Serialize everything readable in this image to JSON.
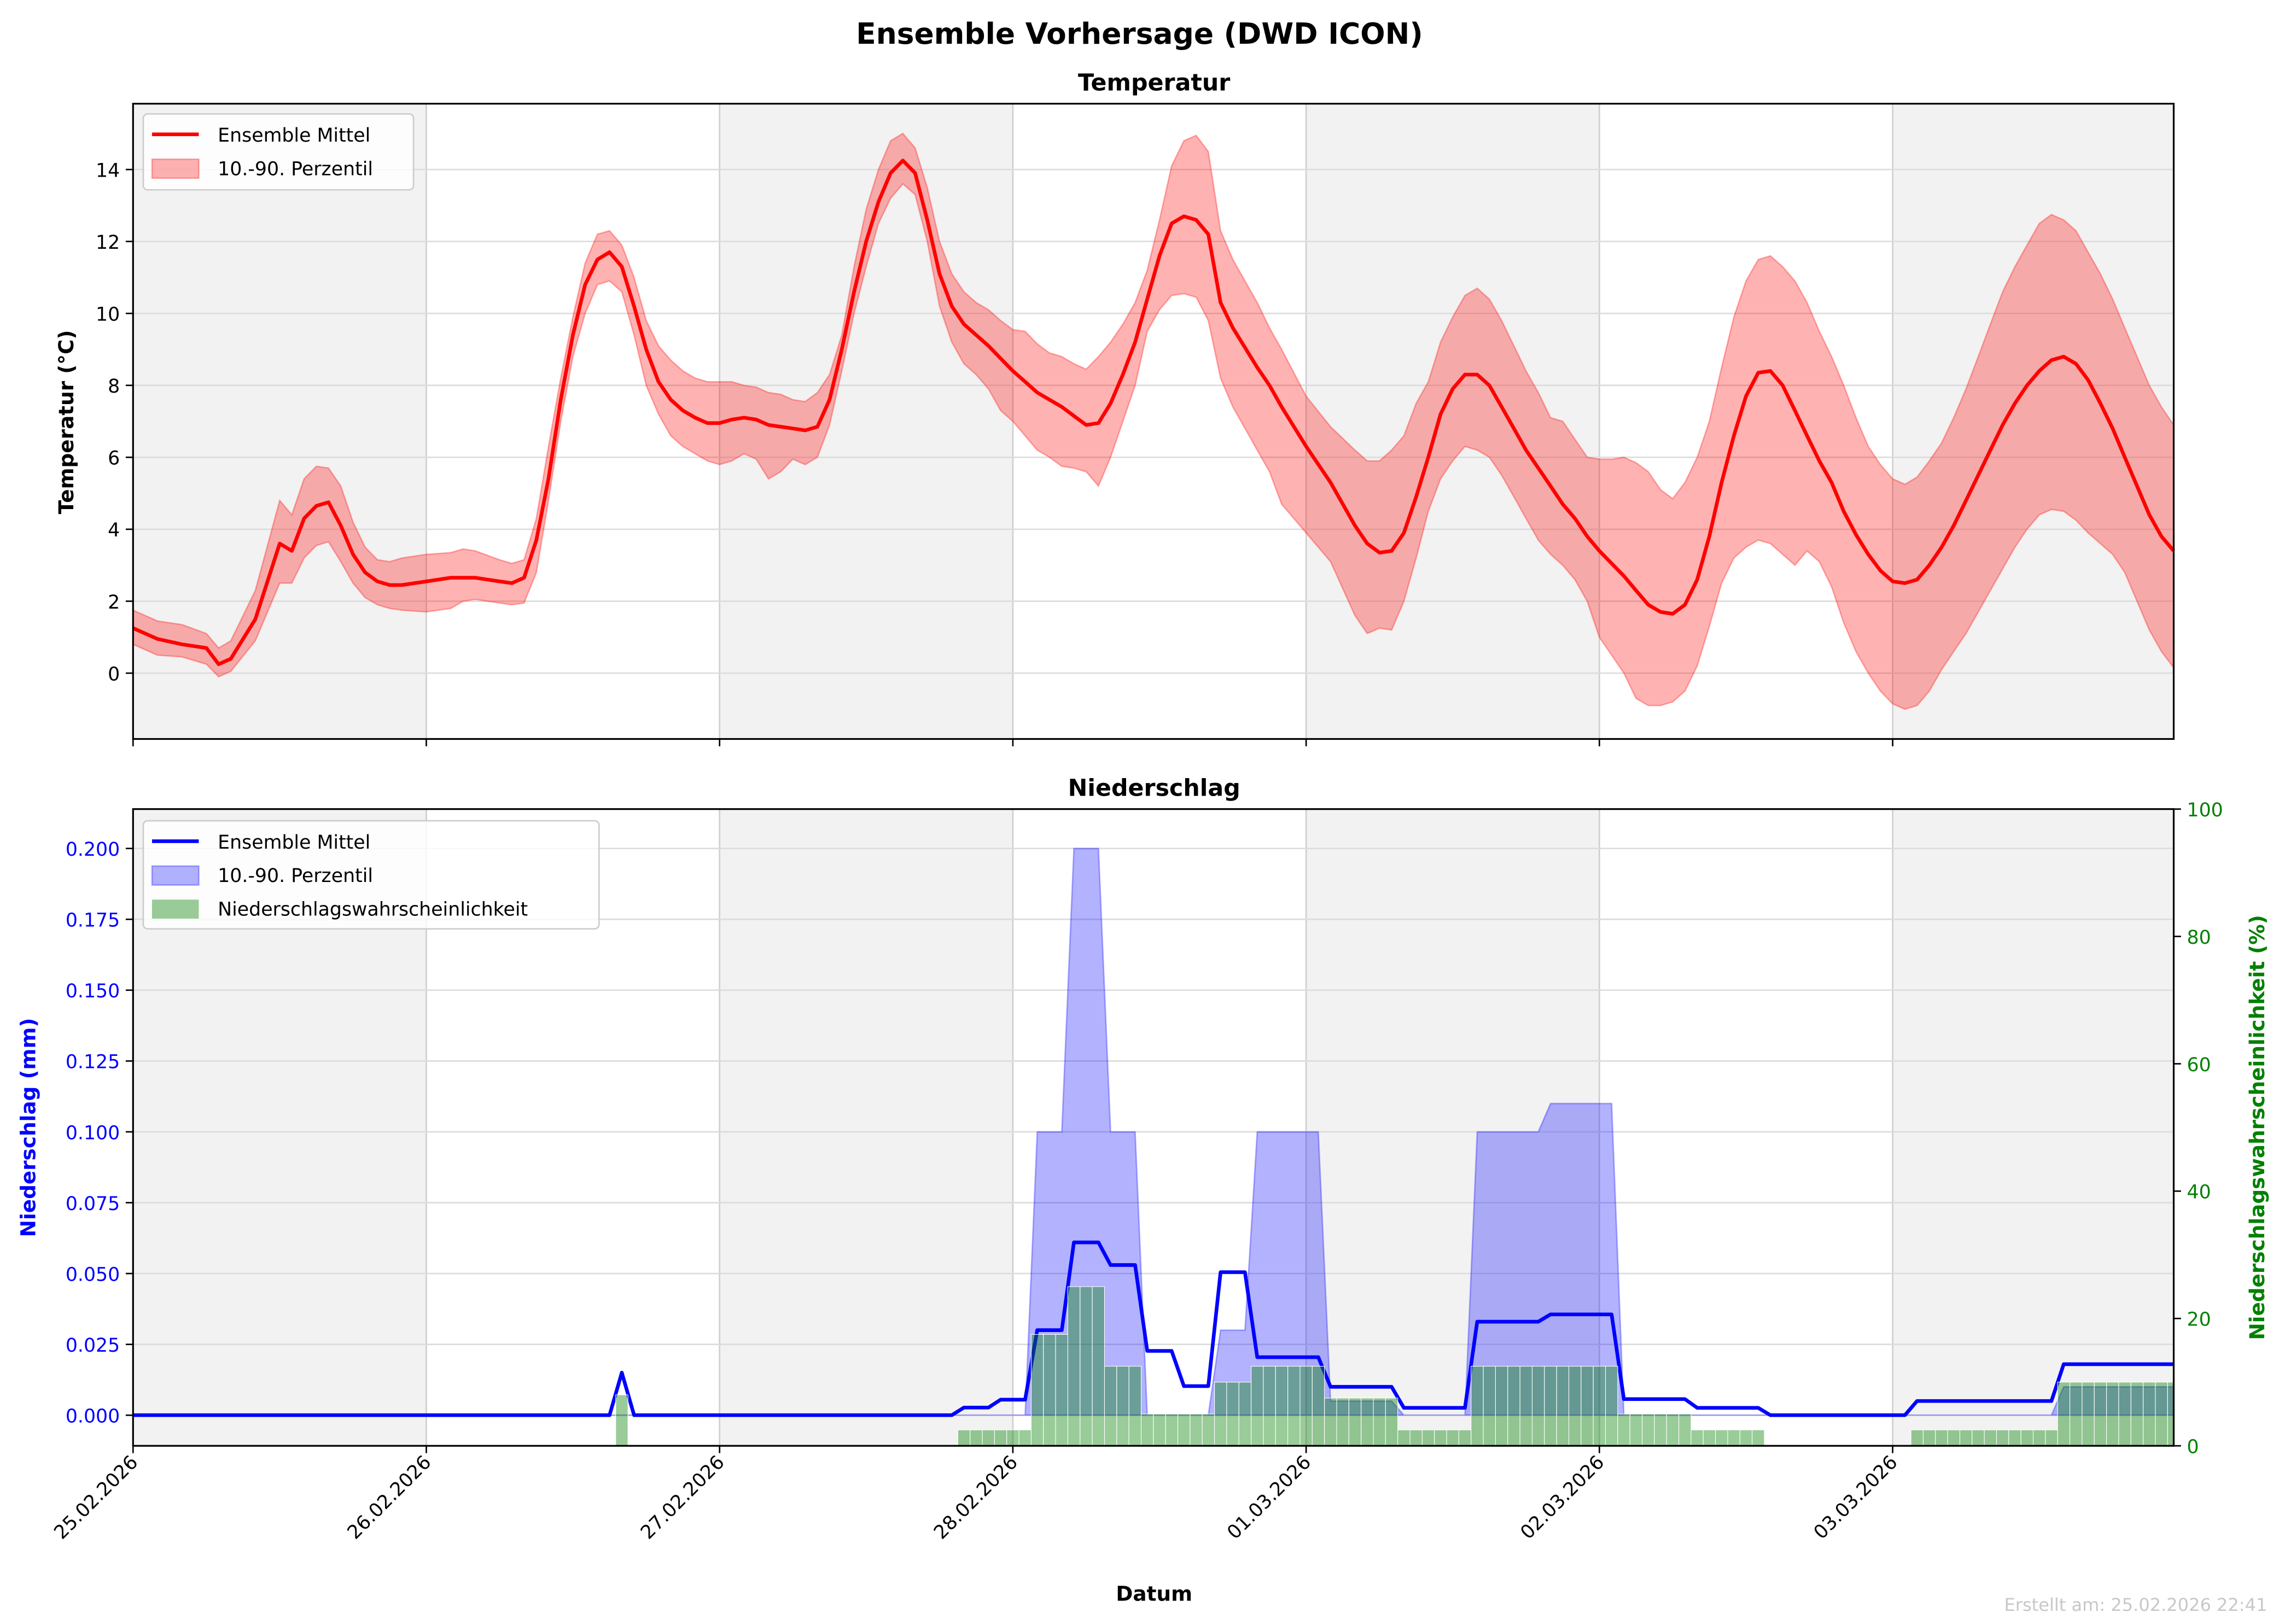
{
  "suptitle": "Ensemble Vorhersage (DWD ICON)",
  "footer": "Erstellt am: 25.02.2026 22:41",
  "colors": {
    "temp": "#ff0000",
    "precip": "#0000ff",
    "prob": "#008000",
    "shade": "#f2f2f2"
  },
  "chart_data": [
    {
      "type": "line",
      "title": "Temperatur",
      "xlabel": "",
      "ylabel": "Temperatur (°C)",
      "x_unit": "hours since 25.02.2026 00:00",
      "xlim": [
        0,
        167
      ],
      "ylim": [
        -1.83,
        15.83
      ],
      "yticks": [
        0,
        2,
        4,
        6,
        8,
        10,
        12,
        14
      ],
      "legend": {
        "placement": "top-left",
        "entries": [
          "Ensemble Mittel",
          "10.-90. Perzentil"
        ]
      },
      "hours": [
        0,
        2,
        4,
        6,
        7,
        8,
        10,
        12,
        13,
        14,
        15,
        16,
        17,
        18,
        19,
        20,
        21,
        22,
        24,
        26,
        27,
        28,
        30,
        31,
        32,
        33,
        34,
        35,
        36,
        37,
        38,
        39,
        40,
        41,
        42,
        43,
        44,
        45,
        46,
        47,
        48,
        49,
        50,
        51,
        52,
        53,
        54,
        55,
        56,
        57,
        58,
        59,
        60,
        61,
        62,
        63,
        64,
        65,
        66,
        67,
        68,
        69,
        70,
        71,
        72,
        73,
        74,
        75,
        76,
        77,
        78,
        79,
        80,
        81,
        82,
        83,
        84,
        85,
        86,
        87,
        88,
        89,
        90,
        92,
        93,
        94,
        96,
        98,
        100,
        101,
        102,
        103,
        104,
        105,
        106,
        107,
        108,
        109,
        110,
        111,
        112,
        113,
        114,
        115,
        116,
        117,
        118,
        119,
        120,
        121,
        122,
        123,
        124,
        125,
        126,
        127,
        128,
        129,
        130,
        131,
        132,
        133,
        134,
        135,
        136,
        137,
        138,
        139,
        140,
        141,
        142,
        143,
        144,
        145,
        146,
        147,
        148,
        149,
        150,
        151,
        152,
        153,
        154,
        155,
        156,
        157,
        158,
        159,
        160,
        161,
        162,
        163,
        164,
        165,
        166,
        167
      ],
      "mean": [
        1.25,
        0.95,
        0.8,
        0.7,
        0.25,
        0.4,
        1.5,
        3.6,
        3.4,
        4.3,
        4.65,
        4.75,
        4.1,
        3.3,
        2.8,
        2.55,
        2.45,
        2.45,
        2.55,
        2.65,
        2.65,
        2.65,
        2.55,
        2.5,
        2.65,
        3.7,
        5.4,
        7.6,
        9.4,
        10.8,
        11.5,
        11.7,
        11.3,
        10.2,
        9.0,
        8.1,
        7.6,
        7.3,
        7.1,
        6.95,
        6.95,
        7.05,
        7.1,
        7.05,
        6.9,
        6.85,
        6.8,
        6.75,
        6.85,
        7.6,
        9.0,
        10.6,
        12.0,
        13.1,
        13.9,
        14.25,
        13.9,
        12.6,
        11.1,
        10.2,
        9.7,
        9.4,
        9.1,
        8.75,
        8.4,
        8.1,
        7.8,
        7.6,
        7.4,
        7.15,
        6.9,
        6.95,
        7.5,
        8.3,
        9.2,
        10.4,
        11.6,
        12.5,
        12.7,
        12.6,
        12.2,
        10.3,
        9.6,
        8.5,
        8.0,
        7.4,
        6.3,
        5.3,
        4.1,
        3.6,
        3.35,
        3.4,
        3.9,
        4.9,
        6.0,
        7.2,
        7.9,
        8.3,
        8.3,
        8.0,
        7.4,
        6.8,
        6.2,
        5.7,
        5.2,
        4.7,
        4.3,
        3.8,
        3.4,
        3.05,
        2.7,
        2.3,
        1.9,
        1.7,
        1.65,
        1.9,
        2.6,
        3.8,
        5.3,
        6.6,
        7.7,
        8.35,
        8.4,
        8.0,
        7.3,
        6.6,
        5.9,
        5.3,
        4.5,
        3.85,
        3.3,
        2.85,
        2.55,
        2.5,
        2.6,
        3.0,
        3.5,
        4.1,
        4.8,
        5.5,
        6.2,
        6.9,
        7.5,
        8.0,
        8.4,
        8.7,
        8.8,
        8.6,
        8.15,
        7.5,
        6.8,
        6.0,
        5.2,
        4.4,
        3.8,
        3.4
      ],
      "p10": [
        0.8,
        0.5,
        0.45,
        0.25,
        -0.1,
        0.05,
        0.9,
        2.5,
        2.5,
        3.2,
        3.55,
        3.65,
        3.1,
        2.5,
        2.1,
        1.9,
        1.8,
        1.75,
        1.7,
        1.8,
        2.0,
        2.05,
        1.95,
        1.9,
        1.95,
        2.8,
        4.8,
        7.0,
        8.8,
        10.0,
        10.8,
        10.9,
        10.6,
        9.4,
        8.0,
        7.2,
        6.6,
        6.3,
        6.1,
        5.9,
        5.8,
        5.9,
        6.1,
        5.95,
        5.4,
        5.6,
        5.95,
        5.8,
        6.0,
        6.9,
        8.4,
        10.0,
        11.3,
        12.5,
        13.2,
        13.6,
        13.3,
        12.0,
        10.2,
        9.2,
        8.6,
        8.3,
        7.9,
        7.3,
        7.0,
        6.6,
        6.2,
        6.0,
        5.75,
        5.7,
        5.6,
        5.2,
        6.0,
        7.0,
        8.0,
        9.5,
        10.1,
        10.5,
        10.55,
        10.45,
        9.8,
        8.2,
        7.4,
        6.2,
        5.6,
        4.7,
        3.9,
        3.1,
        1.6,
        1.1,
        1.25,
        1.2,
        2.0,
        3.2,
        4.5,
        5.4,
        5.9,
        6.3,
        6.2,
        6.0,
        5.5,
        4.9,
        4.3,
        3.7,
        3.3,
        3.0,
        2.6,
        2.0,
        1.0,
        0.5,
        0.0,
        -0.7,
        -0.9,
        -0.9,
        -0.8,
        -0.5,
        0.2,
        1.3,
        2.5,
        3.2,
        3.5,
        3.7,
        3.6,
        3.3,
        3.0,
        3.4,
        3.1,
        2.4,
        1.4,
        0.6,
        0.0,
        -0.5,
        -0.85,
        -1.0,
        -0.9,
        -0.5,
        0.1,
        0.6,
        1.1,
        1.7,
        2.3,
        2.9,
        3.5,
        4.0,
        4.4,
        4.55,
        4.5,
        4.25,
        3.9,
        3.6,
        3.3,
        2.8,
        2.0,
        1.2,
        0.6,
        0.15
      ],
      "p90": [
        1.75,
        1.45,
        1.35,
        1.1,
        0.7,
        0.9,
        2.3,
        4.8,
        4.4,
        5.4,
        5.75,
        5.7,
        5.2,
        4.2,
        3.5,
        3.15,
        3.1,
        3.2,
        3.3,
        3.35,
        3.45,
        3.4,
        3.15,
        3.05,
        3.15,
        4.3,
        6.3,
        8.2,
        9.9,
        11.4,
        12.2,
        12.3,
        11.9,
        11.0,
        9.8,
        9.1,
        8.7,
        8.4,
        8.2,
        8.1,
        8.1,
        8.1,
        8.0,
        7.95,
        7.8,
        7.75,
        7.6,
        7.55,
        7.8,
        8.3,
        9.4,
        11.3,
        12.9,
        14.0,
        14.8,
        15.0,
        14.6,
        13.5,
        12.0,
        11.1,
        10.6,
        10.3,
        10.1,
        9.8,
        9.55,
        9.5,
        9.15,
        8.9,
        8.8,
        8.6,
        8.45,
        8.8,
        9.2,
        9.7,
        10.3,
        11.2,
        12.6,
        14.1,
        14.8,
        14.95,
        14.5,
        12.3,
        11.5,
        10.3,
        9.6,
        9.0,
        7.7,
        6.85,
        6.2,
        5.9,
        5.9,
        6.2,
        6.6,
        7.5,
        8.1,
        9.2,
        9.9,
        10.5,
        10.7,
        10.4,
        9.8,
        9.1,
        8.4,
        7.8,
        7.1,
        7.0,
        6.5,
        6.0,
        5.95,
        5.95,
        6.0,
        5.85,
        5.6,
        5.1,
        4.85,
        5.3,
        6.0,
        7.0,
        8.5,
        9.9,
        10.9,
        11.5,
        11.6,
        11.3,
        10.9,
        10.3,
        9.5,
        8.8,
        8.0,
        7.1,
        6.3,
        5.8,
        5.4,
        5.25,
        5.45,
        5.9,
        6.4,
        7.1,
        7.9,
        8.8,
        9.7,
        10.6,
        11.3,
        11.9,
        12.5,
        12.75,
        12.6,
        12.3,
        11.7,
        11.1,
        10.4,
        9.6,
        8.8,
        8.0,
        7.4,
        6.9
      ],
      "xticks": [
        0,
        24,
        48,
        72,
        96,
        120,
        144
      ],
      "xticklabels": [
        "25.02.2026",
        "26.02.2026",
        "27.02.2026",
        "28.02.2026",
        "01.03.2026",
        "02.03.2026",
        "03.03.2026"
      ]
    },
    {
      "type": "line",
      "title": "Niederschlag",
      "xlabel": "Datum",
      "ylabel": "Niederschlag (mm)",
      "ylabel_right": "Niederschlagswahrscheinlichkeit (%)",
      "xlim": [
        0,
        167
      ],
      "ylim": [
        -0.0108,
        0.2139
      ],
      "ylim_right": [
        0,
        100
      ],
      "yticks": [
        "0.000",
        "0.025",
        "0.050",
        "0.075",
        "0.100",
        "0.125",
        "0.150",
        "0.175",
        "0.200"
      ],
      "yticks_right": [
        0,
        20,
        40,
        60,
        80,
        100
      ],
      "legend": {
        "placement": "top-left",
        "entries": [
          "Ensemble Mittel",
          "10.-90. Perzentil",
          "Niederschlagswahrscheinlichkeit"
        ]
      },
      "segments_fields": [
        "start_hour",
        "end_hour",
        "mean_mm",
        "p90_mm",
        "probability_pct"
      ],
      "segments": [
        [
          0,
          39,
          0,
          0,
          0
        ],
        [
          40,
          40,
          0.015,
          0,
          8
        ],
        [
          41,
          67,
          0,
          0,
          0
        ],
        [
          68,
          70,
          0.0027,
          0,
          2.5
        ],
        [
          71,
          73,
          0.0055,
          0,
          2.5
        ],
        [
          74,
          76,
          0.03,
          0.1,
          17.5
        ],
        [
          77,
          79,
          0.061,
          0.2,
          25
        ],
        [
          80,
          82,
          0.053,
          0.1,
          12.5
        ],
        [
          83,
          85,
          0.0227,
          0,
          5
        ],
        [
          86,
          88,
          0.0103,
          0,
          5
        ],
        [
          89,
          91,
          0.0505,
          0.03,
          10
        ],
        [
          92,
          97,
          0.0205,
          0.1,
          12.5
        ],
        [
          98,
          103,
          0.01,
          0.005,
          7.5
        ],
        [
          104,
          109,
          0.0026,
          0,
          2.5
        ],
        [
          110,
          115,
          0.033,
          0.1,
          12.5
        ],
        [
          116,
          121,
          0.0356,
          0.11,
          12.5
        ],
        [
          122,
          127,
          0.0057,
          0,
          5
        ],
        [
          128,
          133,
          0.0026,
          0,
          2.5
        ],
        [
          134,
          145,
          0,
          0,
          0
        ],
        [
          146,
          157,
          0.005,
          0,
          2.5
        ],
        [
          158,
          167,
          0.018,
          0.01,
          10
        ]
      ],
      "p10_mm": 0,
      "xticks": [
        0,
        24,
        48,
        72,
        96,
        120,
        144
      ],
      "xticklabels": [
        "25.02.2026",
        "26.02.2026",
        "27.02.2026",
        "28.02.2026",
        "01.03.2026",
        "02.03.2026",
        "03.03.2026"
      ]
    }
  ]
}
